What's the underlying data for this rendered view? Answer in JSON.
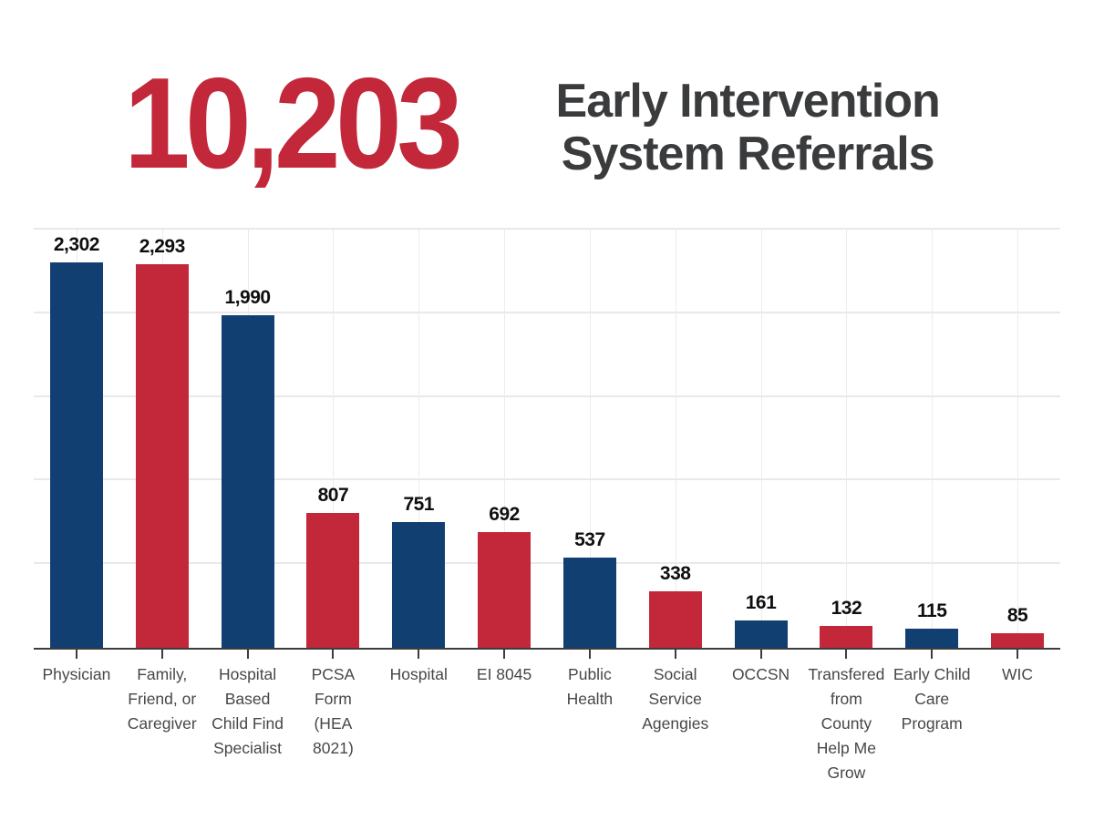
{
  "header": {
    "big_number": "10,203",
    "title": "Early Intervention System Referrals",
    "number_color": "#c2273a",
    "title_color": "#3a3b3d"
  },
  "chart_data": {
    "type": "bar",
    "title": "Early Intervention System Referrals",
    "total_label": "10,203",
    "categories": [
      "Physician",
      "Family, Friend, or Caregiver",
      "Hospital Based Child Find Specialist",
      "PCSA Form (HEA 8021)",
      "Hospital",
      "EI 8045",
      "Public Health",
      "Social Service Agengies",
      "OCCSN",
      "Transfered from County Help Me Grow",
      "Early Child Care Program",
      "WIC"
    ],
    "values": [
      2302,
      2293,
      1990,
      807,
      751,
      692,
      537,
      338,
      161,
      132,
      115,
      85
    ],
    "value_labels": [
      "2,302",
      "2,293",
      "1,990",
      "807",
      "751",
      "692",
      "537",
      "338",
      "161",
      "132",
      "115",
      "85"
    ],
    "bar_colors": [
      "#123f72",
      "#c2273a",
      "#123f72",
      "#c2273a",
      "#123f72",
      "#c2273a",
      "#123f72",
      "#c2273a",
      "#123f72",
      "#c2273a",
      "#123f72",
      "#c2273a"
    ],
    "xlabel": "",
    "ylabel": "",
    "ylim": [
      0,
      2500
    ],
    "gridline_step": 500,
    "gridlines_horizontal": [
      500,
      1000,
      1500,
      2000,
      2500
    ],
    "vertical_gridlines": "at each category center",
    "legend": "none",
    "data_labels": "above bars, bold"
  }
}
